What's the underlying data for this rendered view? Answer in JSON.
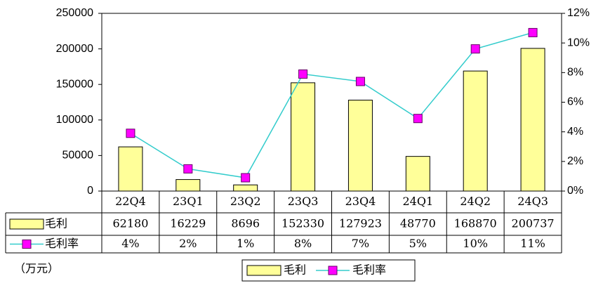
{
  "chart_data": {
    "type": "bar-line",
    "ylabel": "（万元）",
    "categories": [
      "22Q4",
      "23Q1",
      "23Q2",
      "23Q3",
      "23Q4",
      "24Q1",
      "24Q2",
      "24Q3"
    ],
    "series": [
      {
        "name": "毛利",
        "type": "bar",
        "color": "#ffff99",
        "values": [
          62180,
          16229,
          8696,
          152330,
          127923,
          48770,
          168870,
          200737
        ]
      },
      {
        "name": "毛利率",
        "type": "line",
        "axis": "y2",
        "color": "#33cccc",
        "marker_color": "#ff00ff",
        "values": [
          3.9,
          1.5,
          0.9,
          7.9,
          7.4,
          4.9,
          9.6,
          10.7
        ],
        "value_labels": [
          "4%",
          "2%",
          "1%",
          "8%",
          "7%",
          "5%",
          "10%",
          "11%"
        ]
      }
    ],
    "ylim": [
      0,
      250000
    ],
    "yticks": [
      0,
      50000,
      100000,
      150000,
      200000,
      250000
    ],
    "y2lim": [
      0,
      12
    ],
    "y2ticks": [
      {
        "value": 0,
        "label": "0%"
      },
      {
        "value": 2,
        "label": "2%"
      },
      {
        "value": 4,
        "label": "4%"
      },
      {
        "value": 6,
        "label": "6%"
      },
      {
        "value": 8,
        "label": "8%"
      },
      {
        "value": 10,
        "label": "10%"
      },
      {
        "value": 12,
        "label": "12%"
      }
    ],
    "legend": "bottom"
  }
}
